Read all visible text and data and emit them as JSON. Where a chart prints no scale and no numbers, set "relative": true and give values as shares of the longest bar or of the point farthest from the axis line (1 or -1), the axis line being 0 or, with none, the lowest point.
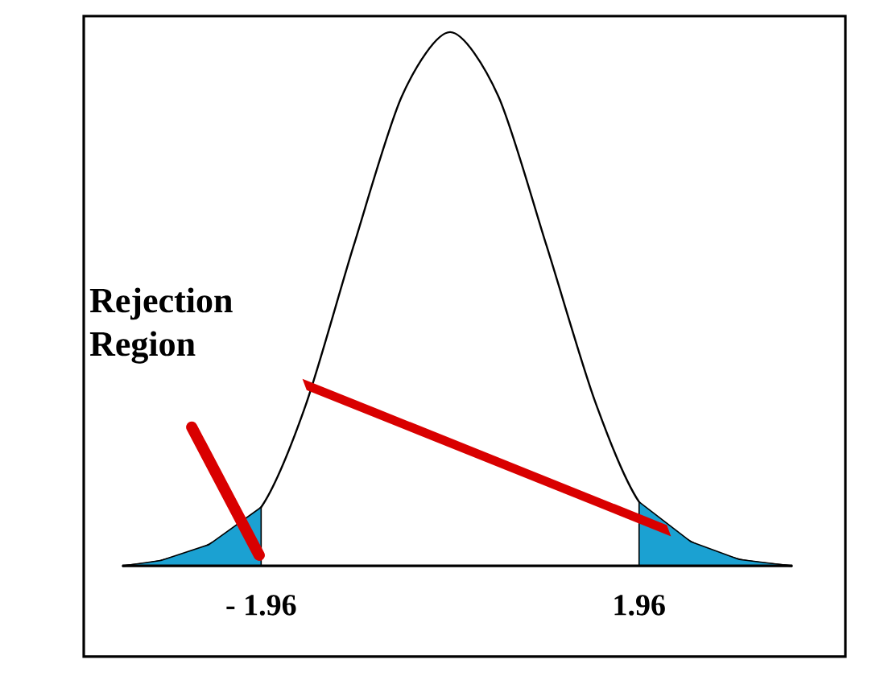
{
  "chart_data": {
    "type": "line",
    "relative": true,
    "xlim": [
      -3.8,
      4.1
    ],
    "xticks": [
      {
        "value": -1.96,
        "label": "- 1.96"
      },
      1.96
    ],
    "annotations": [
      "Rejection Region"
    ],
    "series": [
      {
        "color": "#000000",
        "x": [
          -3.4,
          -3,
          -2.5,
          -1.96,
          -1.5,
          -1,
          -0.5,
          0,
          0.5,
          1,
          1.5,
          1.96,
          2.5,
          3,
          3.55
        ],
        "values": [
          0,
          0.01,
          0.04,
          0.11,
          0.3,
          0.6,
          0.88,
          1,
          0.88,
          0.6,
          0.31,
          0.12,
          0.045,
          0.012,
          0
        ]
      },
      {
        "type": "area",
        "color": "#1ba1d2",
        "x": [
          -3.4,
          -3,
          -2.5,
          -1.96
        ],
        "values": [
          0,
          0.01,
          0.04,
          0.11
        ]
      },
      {
        "type": "area",
        "color": "#1ba1d2",
        "x": [
          1.96,
          2.5,
          3,
          3.55
        ],
        "values": [
          0.12,
          0.045,
          0.012,
          0
        ]
      }
    ]
  }
}
